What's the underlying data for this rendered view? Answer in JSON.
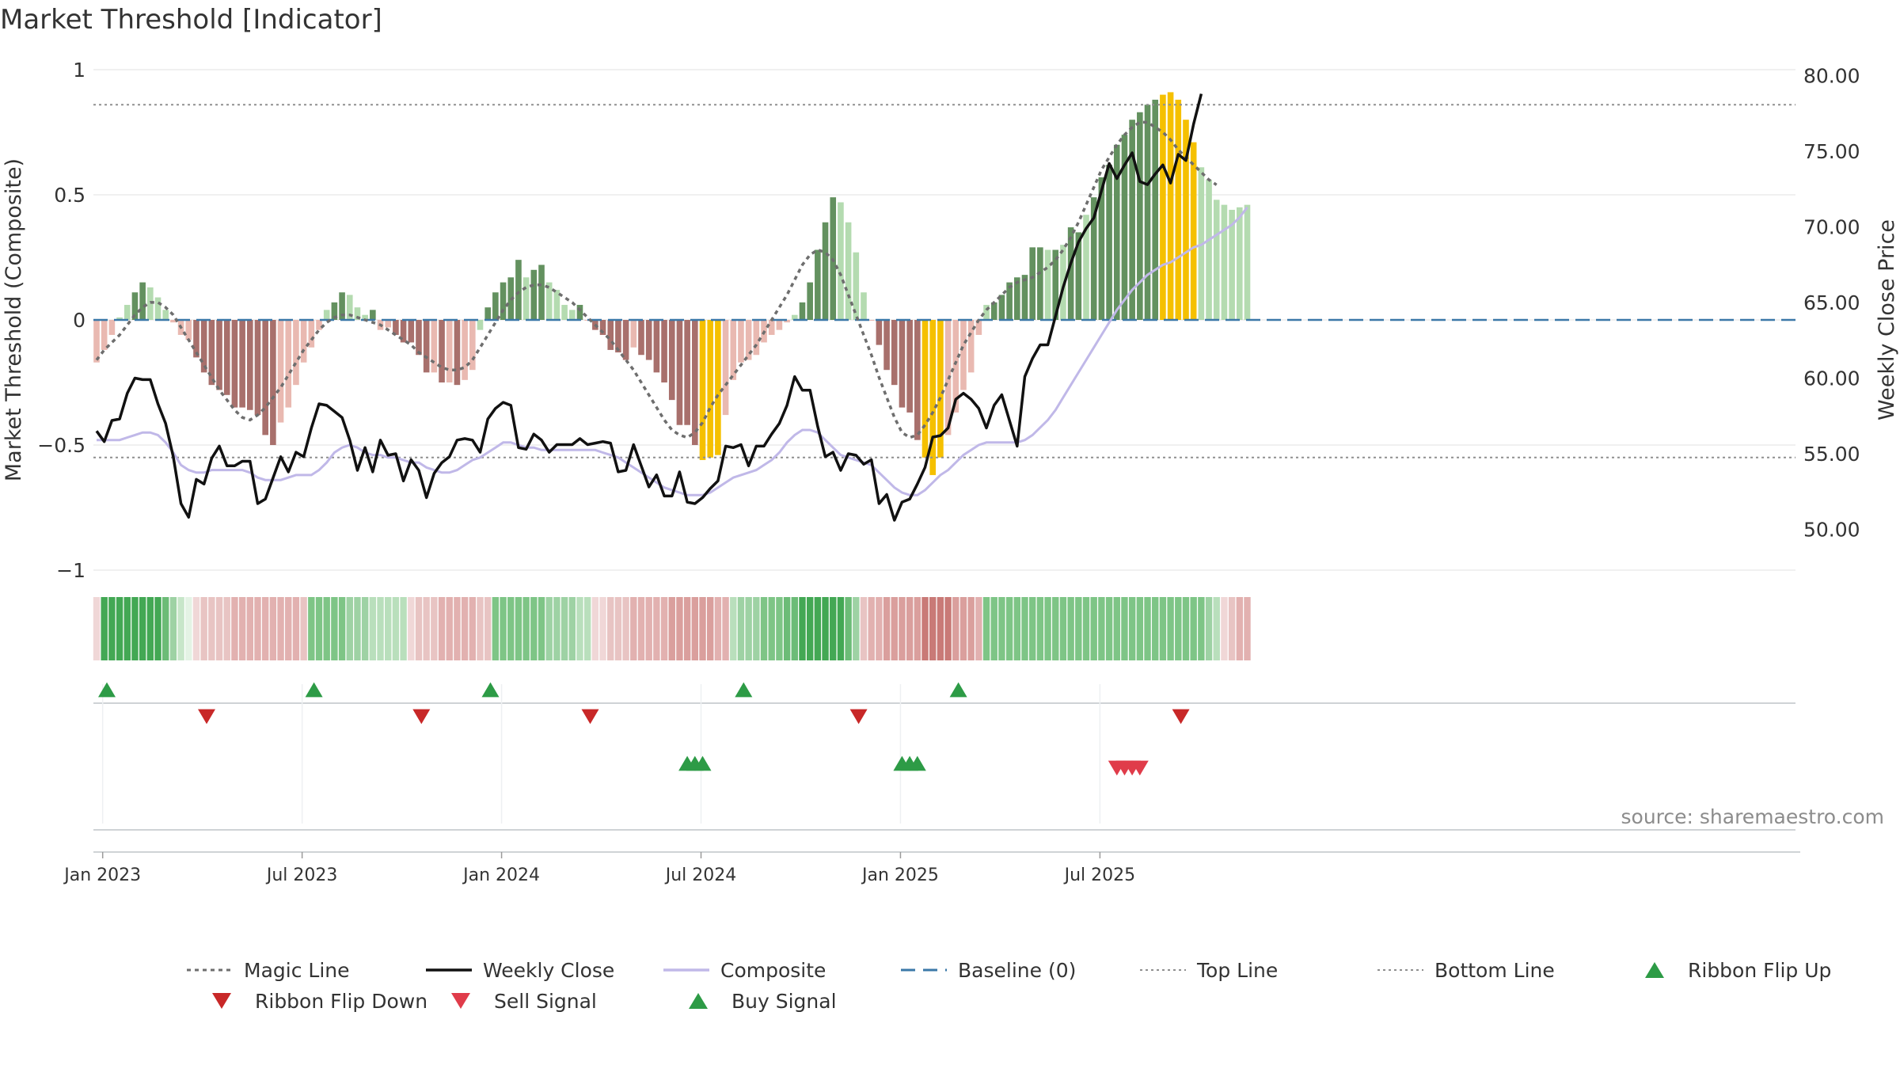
{
  "chart_data": {
    "type": "bar",
    "title": "Market Threshold [Indicator]",
    "ylabel_left": "Market Threshold (Composite)",
    "ylabel_right": "Weekly Close Price",
    "source_label": "source: sharemaestro.com",
    "left_axis": {
      "range": [
        -1,
        1
      ],
      "ticks": [
        1,
        0.5,
        0,
        -0.5,
        -1
      ],
      "tick_labels": [
        "1",
        "0.5",
        "0",
        "−0.5",
        "−1"
      ]
    },
    "right_axis": {
      "range": [
        47.3,
        80.4
      ],
      "ticks": [
        80,
        75,
        70,
        65,
        60,
        55,
        50
      ],
      "tick_labels": [
        "80.00",
        "75.00",
        "70.00",
        "65.00",
        "60.00",
        "55.00",
        "50.00"
      ]
    },
    "x_ticks": [
      {
        "label": "Jan 2023",
        "week": 1
      },
      {
        "label": "Jul 2023",
        "week": 27
      },
      {
        "label": "Jan 2024",
        "week": 53
      },
      {
        "label": "Jul 2024",
        "week": 79
      },
      {
        "label": "Jan 2025",
        "week": 105
      },
      {
        "label": "Jul 2025",
        "week": 131
      }
    ],
    "top_line": 0.86,
    "bottom_line": -0.55,
    "bars": [
      -0.17,
      -0.12,
      -0.06,
      0.01,
      0.06,
      0.11,
      0.15,
      0.13,
      0.09,
      0.04,
      -0.01,
      -0.06,
      -0.08,
      -0.15,
      -0.21,
      -0.26,
      -0.28,
      -0.3,
      -0.35,
      -0.35,
      -0.36,
      -0.38,
      -0.46,
      -0.5,
      -0.41,
      -0.35,
      -0.26,
      -0.17,
      -0.11,
      -0.04,
      0.04,
      0.07,
      0.11,
      0.1,
      0.05,
      0.02,
      0.04,
      -0.04,
      -0.03,
      -0.06,
      -0.09,
      -0.09,
      -0.14,
      -0.21,
      -0.21,
      -0.25,
      -0.25,
      -0.26,
      -0.24,
      -0.2,
      -0.04,
      0.05,
      0.11,
      0.15,
      0.17,
      0.24,
      0.17,
      0.2,
      0.22,
      0.15,
      0.12,
      0.06,
      0.04,
      0.06,
      0,
      -0.04,
      -0.06,
      -0.12,
      -0.13,
      -0.16,
      -0.11,
      -0.14,
      -0.16,
      -0.21,
      -0.25,
      -0.32,
      -0.42,
      -0.42,
      -0.5,
      -0.56,
      -0.55,
      -0.54,
      -0.38,
      -0.24,
      -0.17,
      -0.16,
      -0.14,
      -0.09,
      -0.06,
      -0.04,
      -0.01,
      0.02,
      0.07,
      0.15,
      0.28,
      0.39,
      0.49,
      0.47,
      0.39,
      0.27,
      0.11,
      0,
      -0.1,
      -0.2,
      -0.26,
      -0.35,
      -0.37,
      -0.48,
      -0.55,
      -0.62,
      -0.55,
      -0.46,
      -0.37,
      -0.28,
      -0.21,
      -0.06,
      0.06,
      0.07,
      0.1,
      0.15,
      0.17,
      0.18,
      0.29,
      0.29,
      0.28,
      0.28,
      0.3,
      0.37,
      0.35,
      0.42,
      0.49,
      0.57,
      0.62,
      0.7,
      0.74,
      0.8,
      0.83,
      0.86,
      0.88,
      0.9,
      0.91,
      0.88,
      0.8,
      0.71,
      0.61,
      0.56,
      0.48,
      0.46,
      0.44,
      0.45,
      0.46
    ],
    "bar_colors": [
      "#e9b9b1",
      "#e9b9b1",
      "#e9b9b1",
      "#b4dbb0",
      "#b4dbb0",
      "#63915f",
      "#63915f",
      "#b4dbb0",
      "#b4dbb0",
      "#b4dbb0",
      "#e9b9b1",
      "#e9b9b1",
      "#e9b9b1",
      "#a8706c",
      "#a8706c",
      "#a8706c",
      "#a8706c",
      "#a8706c",
      "#a8706c",
      "#a8706c",
      "#a8706c",
      "#a8706c",
      "#a8706c",
      "#a8706c",
      "#e9b9b1",
      "#e9b9b1",
      "#e9b9b1",
      "#e9b9b1",
      "#e9b9b1",
      "#e9b9b1",
      "#b4dbb0",
      "#63915f",
      "#63915f",
      "#b4dbb0",
      "#b4dbb0",
      "#b4dbb0",
      "#63915f",
      "#e9b9b1",
      "#e9b9b1",
      "#a8706c",
      "#a8706c",
      "#a8706c",
      "#a8706c",
      "#a8706c",
      "#e9b9b1",
      "#a8706c",
      "#e9b9b1",
      "#a8706c",
      "#e9b9b1",
      "#e9b9b1",
      "#b4dbb0",
      "#63915f",
      "#63915f",
      "#63915f",
      "#63915f",
      "#63915f",
      "#b4dbb0",
      "#63915f",
      "#63915f",
      "#b4dbb0",
      "#b4dbb0",
      "#b4dbb0",
      "#b4dbb0",
      "#63915f",
      "#e9b9b1",
      "#a8706c",
      "#a8706c",
      "#a8706c",
      "#a8706c",
      "#a8706c",
      "#e9b9b1",
      "#a8706c",
      "#a8706c",
      "#a8706c",
      "#a8706c",
      "#a8706c",
      "#a8706c",
      "#a8706c",
      "#a8706c",
      "#f5c000",
      "#f5c000",
      "#f5c000",
      "#e9b9b1",
      "#e9b9b1",
      "#e9b9b1",
      "#e9b9b1",
      "#e9b9b1",
      "#e9b9b1",
      "#e9b9b1",
      "#e9b9b1",
      "#e9b9b1",
      "#b4dbb0",
      "#63915f",
      "#63915f",
      "#63915f",
      "#63915f",
      "#63915f",
      "#b4dbb0",
      "#b4dbb0",
      "#b4dbb0",
      "#b4dbb0",
      "#e9b9b1",
      "#a8706c",
      "#a8706c",
      "#a8706c",
      "#a8706c",
      "#a8706c",
      "#a8706c",
      "#f5c000",
      "#f5c000",
      "#f5c000",
      "#e9b9b1",
      "#e9b9b1",
      "#e9b9b1",
      "#e9b9b1",
      "#e9b9b1",
      "#b4dbb0",
      "#63915f",
      "#63915f",
      "#63915f",
      "#63915f",
      "#63915f",
      "#63915f",
      "#63915f",
      "#b4dbb0",
      "#63915f",
      "#b4dbb0",
      "#63915f",
      "#63915f",
      "#b4dbb0",
      "#63915f",
      "#63915f",
      "#63915f",
      "#63915f",
      "#63915f",
      "#63915f",
      "#63915f",
      "#63915f",
      "#63915f",
      "#f5c000",
      "#f5c000",
      "#f5c000",
      "#f5c000",
      "#f5c000",
      "#b4dbb0",
      "#b4dbb0",
      "#b4dbb0",
      "#b4dbb0",
      "#b4dbb0",
      "#b4dbb0",
      "#b4dbb0",
      "#b4dbb0",
      "#63915f"
    ],
    "magic_line": [
      -0.16,
      -0.12,
      -0.09,
      -0.06,
      -0.02,
      0.02,
      0.05,
      0.07,
      0.07,
      0.05,
      0.02,
      -0.03,
      -0.08,
      -0.13,
      -0.18,
      -0.23,
      -0.28,
      -0.32,
      -0.36,
      -0.39,
      -0.4,
      -0.38,
      -0.35,
      -0.31,
      -0.27,
      -0.22,
      -0.17,
      -0.12,
      -0.08,
      -0.04,
      -0.01,
      0.01,
      0.02,
      0.02,
      0.01,
      0,
      -0.01,
      -0.02,
      -0.04,
      -0.06,
      -0.08,
      -0.1,
      -0.13,
      -0.15,
      -0.17,
      -0.19,
      -0.2,
      -0.2,
      -0.19,
      -0.16,
      -0.11,
      -0.06,
      -0.01,
      0.04,
      0.08,
      0.11,
      0.13,
      0.14,
      0.14,
      0.13,
      0.11,
      0.09,
      0.07,
      0.04,
      0.01,
      -0.02,
      -0.05,
      -0.08,
      -0.12,
      -0.16,
      -0.2,
      -0.25,
      -0.3,
      -0.35,
      -0.4,
      -0.44,
      -0.46,
      -0.47,
      -0.45,
      -0.41,
      -0.35,
      -0.3,
      -0.26,
      -0.22,
      -0.18,
      -0.14,
      -0.1,
      -0.05,
      0,
      0.05,
      0.1,
      0.16,
      0.22,
      0.26,
      0.28,
      0.27,
      0.24,
      0.18,
      0.1,
      0.02,
      -0.06,
      -0.14,
      -0.23,
      -0.31,
      -0.39,
      -0.45,
      -0.47,
      -0.46,
      -0.42,
      -0.37,
      -0.31,
      -0.24,
      -0.17,
      -0.1,
      -0.05,
      0,
      0.04,
      0.07,
      0.1,
      0.13,
      0.15,
      0.16,
      0.17,
      0.19,
      0.21,
      0.24,
      0.28,
      0.33,
      0.39,
      0.46,
      0.53,
      0.6,
      0.65,
      0.7,
      0.74,
      0.77,
      0.79,
      0.79,
      0.77,
      0.75,
      0.72,
      0.68,
      0.65,
      0.62,
      0.59,
      0.56,
      0.54
    ],
    "weekly_close": [
      56.5,
      55.8,
      57.2,
      57.3,
      59,
      60,
      59.9,
      59.9,
      58.3,
      57,
      54.8,
      51.7,
      50.8,
      53.3,
      53,
      54.7,
      55.5,
      54.2,
      54.2,
      54.5,
      54.5,
      51.7,
      52,
      53.4,
      54.8,
      53.8,
      55.1,
      54.8,
      56.7,
      58.3,
      58.2,
      57.8,
      57.4,
      55.9,
      53.9,
      55.4,
      53.8,
      55.9,
      54.9,
      55,
      53.2,
      54.6,
      53.9,
      52.1,
      53.7,
      54.4,
      54.8,
      55.9,
      56,
      55.9,
      55.1,
      57.3,
      58,
      58.4,
      58.2,
      55.4,
      55.3,
      56.3,
      55.9,
      55.1,
      55.6,
      55.6,
      55.6,
      56,
      55.6,
      55.7,
      55.8,
      55.7,
      53.8,
      53.9,
      55.6,
      54.2,
      52.8,
      53.6,
      52.2,
      52.2,
      53.8,
      51.8,
      51.7,
      52.1,
      52.7,
      53.2,
      55.5,
      55.4,
      55.6,
      54.2,
      55.5,
      55.5,
      56.3,
      57,
      58.2,
      60.1,
      59.2,
      59.2,
      56.8,
      54.8,
      55.1,
      53.9,
      55,
      54.9,
      54.3,
      54.6,
      51.7,
      52.3,
      50.6,
      51.8,
      52,
      53,
      54.1,
      56.1,
      56.2,
      56.7,
      58.6,
      59,
      58.6,
      58,
      56.7,
      58.2,
      58.9,
      57.2,
      55.5,
      60.1,
      61.3,
      62.2,
      62.2,
      64.1,
      66,
      67.6,
      69,
      69.9,
      70.6,
      72.4,
      74.2,
      73.2,
      74.1,
      74.9,
      73,
      72.8,
      73.5,
      74.1,
      72.9,
      74.8,
      74.4,
      76.8,
      78.8
    ],
    "composite_line": [
      -0.48,
      -0.48,
      -0.48,
      -0.48,
      -0.47,
      -0.46,
      -0.45,
      -0.45,
      -0.46,
      -0.49,
      -0.53,
      -0.58,
      -0.6,
      -0.61,
      -0.61,
      -0.6,
      -0.6,
      -0.6,
      -0.6,
      -0.6,
      -0.61,
      -0.63,
      -0.64,
      -0.64,
      -0.64,
      -0.63,
      -0.62,
      -0.62,
      -0.62,
      -0.6,
      -0.57,
      -0.53,
      -0.51,
      -0.5,
      -0.51,
      -0.53,
      -0.54,
      -0.54,
      -0.55,
      -0.55,
      -0.56,
      -0.57,
      -0.57,
      -0.59,
      -0.6,
      -0.61,
      -0.61,
      -0.6,
      -0.58,
      -0.56,
      -0.55,
      -0.53,
      -0.51,
      -0.49,
      -0.49,
      -0.5,
      -0.51,
      -0.51,
      -0.52,
      -0.52,
      -0.52,
      -0.52,
      -0.52,
      -0.52,
      -0.52,
      -0.52,
      -0.53,
      -0.54,
      -0.55,
      -0.57,
      -0.59,
      -0.61,
      -0.63,
      -0.65,
      -0.67,
      -0.68,
      -0.69,
      -0.7,
      -0.7,
      -0.7,
      -0.69,
      -0.67,
      -0.65,
      -0.63,
      -0.62,
      -0.61,
      -0.6,
      -0.58,
      -0.56,
      -0.53,
      -0.49,
      -0.46,
      -0.44,
      -0.44,
      -0.45,
      -0.48,
      -0.51,
      -0.54,
      -0.55,
      -0.56,
      -0.57,
      -0.58,
      -0.61,
      -0.64,
      -0.67,
      -0.69,
      -0.7,
      -0.7,
      -0.68,
      -0.65,
      -0.62,
      -0.6,
      -0.57,
      -0.54,
      -0.52,
      -0.5,
      -0.49,
      -0.49,
      -0.49,
      -0.49,
      -0.49,
      -0.48,
      -0.46,
      -0.43,
      -0.4,
      -0.36,
      -0.31,
      -0.26,
      -0.21,
      -0.16,
      -0.11,
      -0.06,
      -0.01,
      0.04,
      0.08,
      0.12,
      0.15,
      0.18,
      0.2,
      0.22,
      0.23,
      0.25,
      0.27,
      0.29,
      0.3,
      0.32,
      0.34,
      0.36,
      0.38,
      0.41,
      0.45
    ],
    "ribbon_colors": [
      "#f0d7d7",
      "#43a854",
      "#43a854",
      "#43a854",
      "#43a854",
      "#43a854",
      "#43a854",
      "#43a854",
      "#43a854",
      "#6cbc77",
      "#9ed2a4",
      "#c7e6c9",
      "#e4f3e5",
      "#f0d7d7",
      "#e8c4c3",
      "#e8c4c3",
      "#e8c4c3",
      "#e8c4c3",
      "#e2b1b0",
      "#e2b1b0",
      "#e2b1b0",
      "#e2b1b0",
      "#e2b1b0",
      "#e2b1b0",
      "#e2b1b0",
      "#e2b1b0",
      "#e2b1b0",
      "#e8c4c3",
      "#7ec586",
      "#7ec586",
      "#7ec586",
      "#7ec586",
      "#7ec586",
      "#9ed2a4",
      "#9ed2a4",
      "#9ed2a4",
      "#b9dfbc",
      "#b9dfbc",
      "#b9dfbc",
      "#b9dfbc",
      "#b9dfbc",
      "#f0d7d7",
      "#e8c4c3",
      "#e8c4c3",
      "#e8c4c3",
      "#e2b1b0",
      "#e2b1b0",
      "#e2b1b0",
      "#e2b1b0",
      "#e2b1b0",
      "#e8c4c3",
      "#e8c4c3",
      "#7ec586",
      "#7ec586",
      "#7ec586",
      "#7ec586",
      "#7ec586",
      "#7ec586",
      "#7ec586",
      "#9ed2a4",
      "#9ed2a4",
      "#9ed2a4",
      "#9ed2a4",
      "#b9dfbc",
      "#b9dfbc",
      "#f0d7d7",
      "#f0d7d7",
      "#e8c4c3",
      "#e8c4c3",
      "#e8c4c3",
      "#e2b1b0",
      "#e2b1b0",
      "#e2b1b0",
      "#e2b1b0",
      "#e2b1b0",
      "#da9f9d",
      "#da9f9d",
      "#da9f9d",
      "#da9f9d",
      "#da9f9d",
      "#da9f9d",
      "#e2b1b0",
      "#e2b1b0",
      "#b9dfbc",
      "#9ed2a4",
      "#9ed2a4",
      "#9ed2a4",
      "#7ec586",
      "#7ec586",
      "#7ec586",
      "#6cbc77",
      "#6cbc77",
      "#43a854",
      "#43a854",
      "#43a854",
      "#43a854",
      "#43a854",
      "#43a854",
      "#6cbc77",
      "#9ed2a4",
      "#e8c4c3",
      "#e2b1b0",
      "#e2b1b0",
      "#da9f9d",
      "#da9f9d",
      "#da9f9d",
      "#da9f9d",
      "#da9f9d",
      "#c97a77",
      "#c97a77",
      "#c97a77",
      "#c97a77",
      "#da9f9d",
      "#da9f9d",
      "#da9f9d",
      "#e2b1b0",
      "#7ec586",
      "#7ec586",
      "#7ec586",
      "#7ec586",
      "#7ec586",
      "#7ec586",
      "#7ec586",
      "#7ec586",
      "#7ec586",
      "#7ec586",
      "#7ec586",
      "#7ec586",
      "#7ec586",
      "#7ec586",
      "#7ec586",
      "#7ec586",
      "#7ec586",
      "#7ec586",
      "#7ec586",
      "#7ec586",
      "#7ec586",
      "#7ec586",
      "#7ec586",
      "#7ec586",
      "#7ec586",
      "#7ec586",
      "#7ec586",
      "#7ec586",
      "#7ec586",
      "#9ed2a4",
      "#b9dfbc",
      "#f0d7d7",
      "#e8c4c3",
      "#e2b1b0",
      "#e2b1b0"
    ],
    "ribbon_flip_up_weeks": [
      0,
      27,
      50,
      83,
      111
    ],
    "ribbon_flip_down_weeks": [
      13,
      41,
      63,
      98,
      140
    ],
    "buy_signal_weeks": [
      77,
      78,
      79,
      105,
      106,
      107
    ],
    "sell_signal_weeks": [
      133,
      134,
      135,
      136
    ],
    "legend": [
      {
        "label": "Magic Line",
        "style": "dotted-line",
        "color": "#6e6e6e"
      },
      {
        "label": "Weekly Close",
        "style": "line",
        "color": "#111111"
      },
      {
        "label": "Composite",
        "style": "line",
        "color": "#c0b8e8"
      },
      {
        "label": "Baseline (0)",
        "style": "dashed-line",
        "color": "#3b78a8"
      },
      {
        "label": "Top Line",
        "style": "fine-dotted-line",
        "color": "#8f8f8f"
      },
      {
        "label": "Bottom Line",
        "style": "fine-dotted-line",
        "color": "#8f8f8f"
      },
      {
        "label": "Ribbon Flip Up",
        "style": "triangle-up",
        "color": "#2d9b46"
      },
      {
        "label": "Ribbon Flip Down",
        "style": "triangle-down",
        "color": "#c82828"
      },
      {
        "label": "Sell Signal",
        "style": "triangle-down",
        "color": "#e03c4a"
      },
      {
        "label": "Buy Signal",
        "style": "triangle-up",
        "color": "#2d9b46"
      }
    ]
  }
}
